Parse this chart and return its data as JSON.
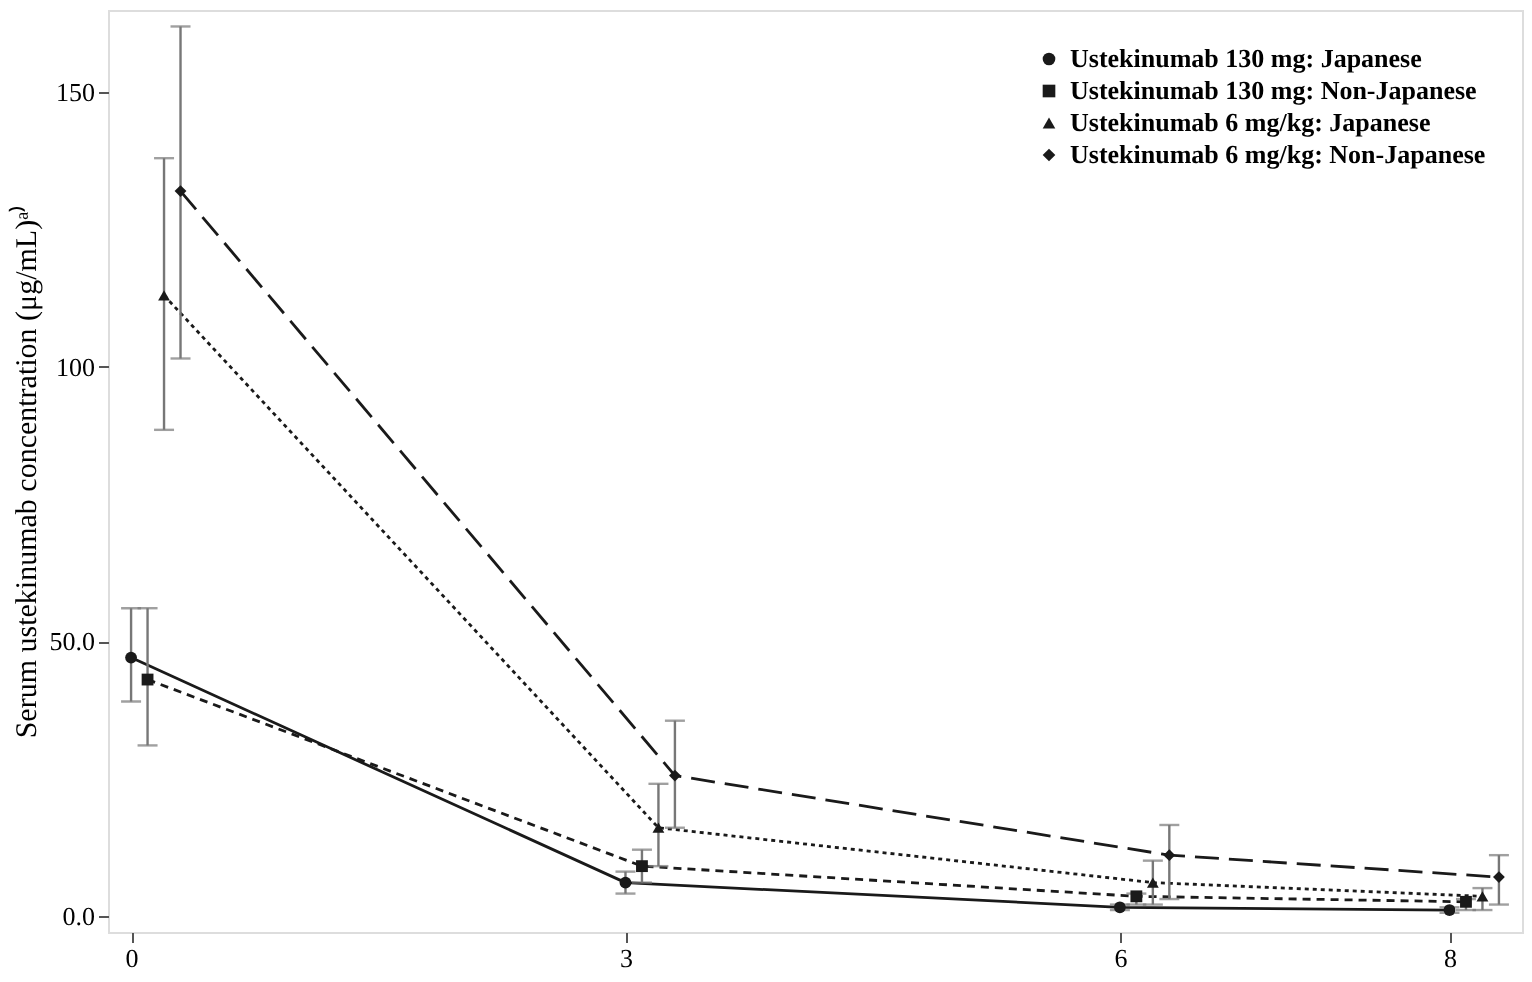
{
  "chart_data": {
    "type": "line",
    "ylabel": "Serum ustekinumab concentration (μg/mL)ᵃ⁾",
    "xlim": [
      -0.14,
      8.44
    ],
    "xticks": [
      0,
      3,
      6,
      8
    ],
    "ylim": [
      -3,
      165
    ],
    "yticks": [
      {
        "value": 0,
        "label": "0.0"
      },
      {
        "value": 50,
        "label": "50.0"
      },
      100,
      150
    ],
    "grid": false,
    "legend": "top right",
    "series": [
      {
        "name": "Ustekinumab 130 mg: Japanese",
        "color": "#1a1a1a",
        "marker": "circle",
        "line_style": "solid",
        "x": [
          0,
          3,
          6,
          8
        ],
        "values": [
          47,
          6,
          1.5,
          1
        ],
        "errors": [
          [
            39,
            56
          ],
          [
            4,
            8
          ],
          [
            1,
            2
          ],
          [
            0.5,
            1.5
          ]
        ]
      },
      {
        "name": "Ustekinumab 130 mg: Non-Japanese",
        "color": "#1a1a1a",
        "marker": "square",
        "line_style": "dashed",
        "x": [
          0.1,
          3.1,
          6.1,
          8.1
        ],
        "values": [
          43,
          9,
          3.5,
          2.5
        ],
        "errors": [
          [
            31,
            56
          ],
          [
            6,
            12
          ],
          [
            2,
            4
          ],
          [
            1,
            3
          ]
        ]
      },
      {
        "name": "Ustekinumab 6 mg/kg: Japanese",
        "color": "#1a1a1a",
        "marker": "triangle",
        "line_style": "dotted",
        "x": [
          0.2,
          3.2,
          6.2,
          8.2
        ],
        "values": [
          113,
          16,
          6,
          3.5
        ],
        "errors": [
          [
            88.5,
            138
          ],
          [
            9,
            24
          ],
          [
            2,
            10
          ],
          [
            1,
            5
          ]
        ]
      },
      {
        "name": "Ustekinumab 6 mg/kg: Non-Japanese",
        "color": "#1a1a1a",
        "marker": "diamond",
        "line_style": "longdash",
        "x": [
          0.3,
          3.3,
          6.3,
          8.3
        ],
        "values": [
          132,
          25.5,
          11,
          7
        ],
        "errors": [
          [
            101.5,
            162
          ],
          [
            16,
            35.5
          ],
          [
            3,
            16.5
          ],
          [
            2,
            11
          ]
        ]
      }
    ]
  }
}
